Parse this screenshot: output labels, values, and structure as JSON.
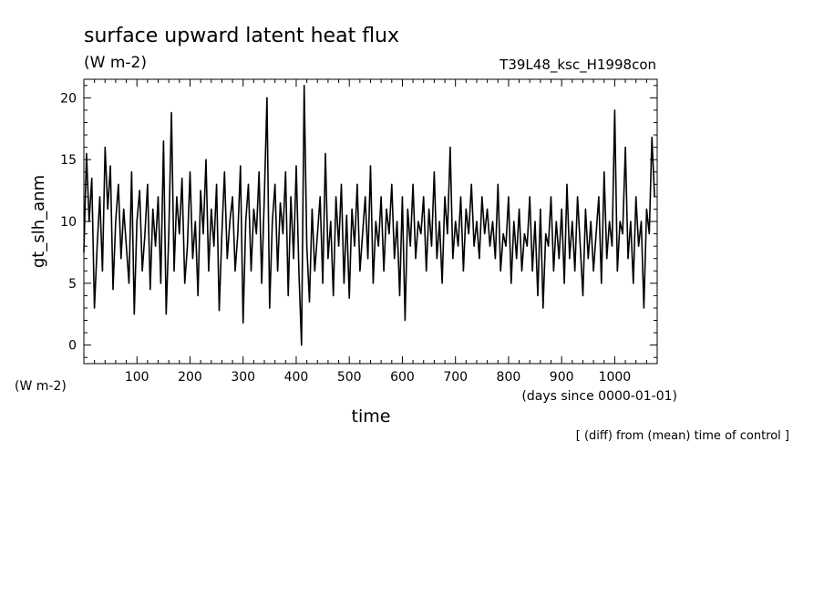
{
  "chart_data": {
    "type": "line",
    "title": "surface upward latent heat flux",
    "units": "(W m-2)",
    "run_label": "T39L48_ksc_H1998con",
    "ylabel": "gt_slh_anm",
    "y_units_label": "(W m-2)",
    "xlabel": "time",
    "x_units_label": "(days since 0000-01-01)",
    "footnote": "[ (diff) from (mean) time of control ]",
    "xlim": [
      0,
      1080
    ],
    "ylim": [
      -1.5,
      21.5
    ],
    "xticks": [
      100,
      200,
      300,
      400,
      500,
      600,
      700,
      800,
      900,
      1000
    ],
    "yticks": [
      0,
      5,
      10,
      15,
      20
    ],
    "x_minor_step": 20,
    "y_minor_step": 1,
    "grid": false,
    "color": "#000000",
    "series": [
      {
        "x": [
          0,
          5,
          10,
          15,
          20,
          25,
          30,
          35,
          40,
          45,
          50,
          55,
          60,
          65,
          70,
          75,
          80,
          85,
          90,
          95,
          100,
          105,
          110,
          115,
          120,
          125,
          130,
          135,
          140,
          145,
          150,
          155,
          160,
          165,
          170,
          175,
          180,
          185,
          190,
          195,
          200,
          205,
          210,
          215,
          220,
          225,
          230,
          235,
          240,
          245,
          250,
          255,
          260,
          265,
          270,
          275,
          280,
          285,
          290,
          295,
          300,
          305,
          310,
          315,
          320,
          325,
          330,
          335,
          340,
          345,
          350,
          355,
          360,
          365,
          370,
          375,
          380,
          385,
          390,
          395,
          400,
          405,
          410,
          415,
          420,
          425,
          430,
          435,
          440,
          445,
          450,
          455,
          460,
          465,
          470,
          475,
          480,
          485,
          490,
          495,
          500,
          505,
          510,
          515,
          520,
          525,
          530,
          535,
          540,
          545,
          550,
          555,
          560,
          565,
          570,
          575,
          580,
          585,
          590,
          595,
          600,
          605,
          610,
          615,
          620,
          625,
          630,
          635,
          640,
          645,
          650,
          655,
          660,
          665,
          670,
          675,
          680,
          685,
          690,
          695,
          700,
          705,
          710,
          715,
          720,
          725,
          730,
          735,
          740,
          745,
          750,
          755,
          760,
          765,
          770,
          775,
          780,
          785,
          790,
          795,
          800,
          805,
          810,
          815,
          820,
          825,
          830,
          835,
          840,
          845,
          850,
          855,
          860,
          865,
          870,
          875,
          880,
          885,
          890,
          895,
          900,
          905,
          910,
          915,
          920,
          925,
          930,
          935,
          940,
          945,
          950,
          955,
          960,
          965,
          970,
          975,
          980,
          985,
          990,
          995,
          1000,
          1005,
          1010,
          1015,
          1020,
          1025,
          1030,
          1035,
          1040,
          1045,
          1050,
          1055,
          1060,
          1065,
          1070,
          1075
        ],
        "values": [
          7.5,
          15.5,
          10,
          13.5,
          3,
          8,
          12,
          6,
          16,
          11,
          14.5,
          4.5,
          10,
          13,
          7,
          11,
          8,
          5,
          14,
          2.5,
          10,
          12.5,
          6,
          9,
          13,
          4.5,
          11,
          8,
          12,
          5,
          16.5,
          2.5,
          9,
          18.8,
          6,
          12,
          9,
          13.5,
          5,
          8,
          14,
          7,
          10,
          4,
          12.5,
          9,
          15,
          6,
          11,
          8,
          13,
          2.8,
          9,
          14,
          7,
          10,
          12,
          6,
          9,
          14.5,
          1.8,
          10,
          13,
          6,
          11,
          9,
          14,
          5,
          12,
          20,
          3,
          10,
          13,
          6,
          11.5,
          9,
          14,
          4,
          12,
          7,
          14.5,
          6,
          0,
          21,
          8,
          3.5,
          11,
          6,
          9,
          12,
          5,
          15.5,
          7,
          10,
          4,
          12,
          8,
          13,
          5,
          10.5,
          3.8,
          11,
          8,
          13,
          6,
          9,
          12,
          7,
          14.5,
          5,
          10,
          8,
          12,
          6,
          11,
          9,
          13,
          7,
          10,
          4,
          12,
          2,
          11,
          8,
          13,
          7,
          10,
          9,
          12,
          6,
          11,
          8,
          14,
          7,
          10,
          5,
          12,
          9,
          16,
          7,
          10,
          8,
          12,
          6,
          11,
          9,
          13,
          8,
          10,
          7,
          12,
          9,
          11,
          8,
          10,
          7,
          13,
          6,
          9,
          8,
          12,
          5,
          10,
          7,
          11,
          6,
          9,
          8,
          12,
          6,
          10,
          4,
          11,
          3,
          9,
          8,
          12,
          6,
          10,
          7,
          11,
          5,
          13,
          7,
          10,
          6,
          12,
          8,
          4,
          11,
          7,
          10,
          6,
          9,
          12,
          5,
          14,
          7,
          10,
          8,
          19,
          6,
          10,
          9,
          16,
          7,
          10,
          5,
          12,
          8,
          10,
          3,
          11,
          9,
          16.8,
          12
        ]
      }
    ]
  }
}
